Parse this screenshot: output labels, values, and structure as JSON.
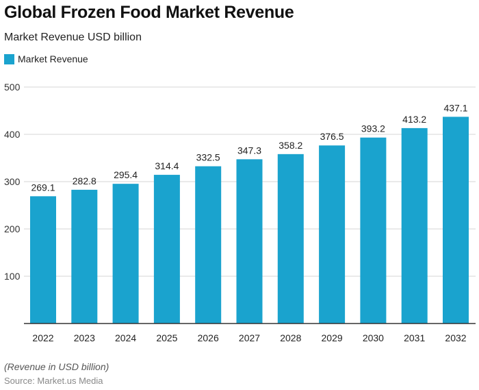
{
  "chart_data": {
    "type": "bar",
    "title": "Global Frozen Food Market Revenue",
    "subtitle": "Market Revenue USD billion",
    "categories": [
      "2022",
      "2023",
      "2024",
      "2025",
      "2026",
      "2027",
      "2028",
      "2029",
      "2030",
      "2031",
      "2032"
    ],
    "series": [
      {
        "name": "Market Revenue",
        "values": [
          269.1,
          282.8,
          295.4,
          314.4,
          332.5,
          347.3,
          358.2,
          376.5,
          393.2,
          413.2,
          437.1
        ]
      }
    ],
    "ylim": [
      0,
      500
    ],
    "yticks": [
      100,
      200,
      300,
      400,
      500
    ],
    "grid": true,
    "legend": "top-left",
    "color": "#1aa3ce",
    "note": "(Revenue in USD billion)",
    "source": "Source: Market.us Media"
  }
}
